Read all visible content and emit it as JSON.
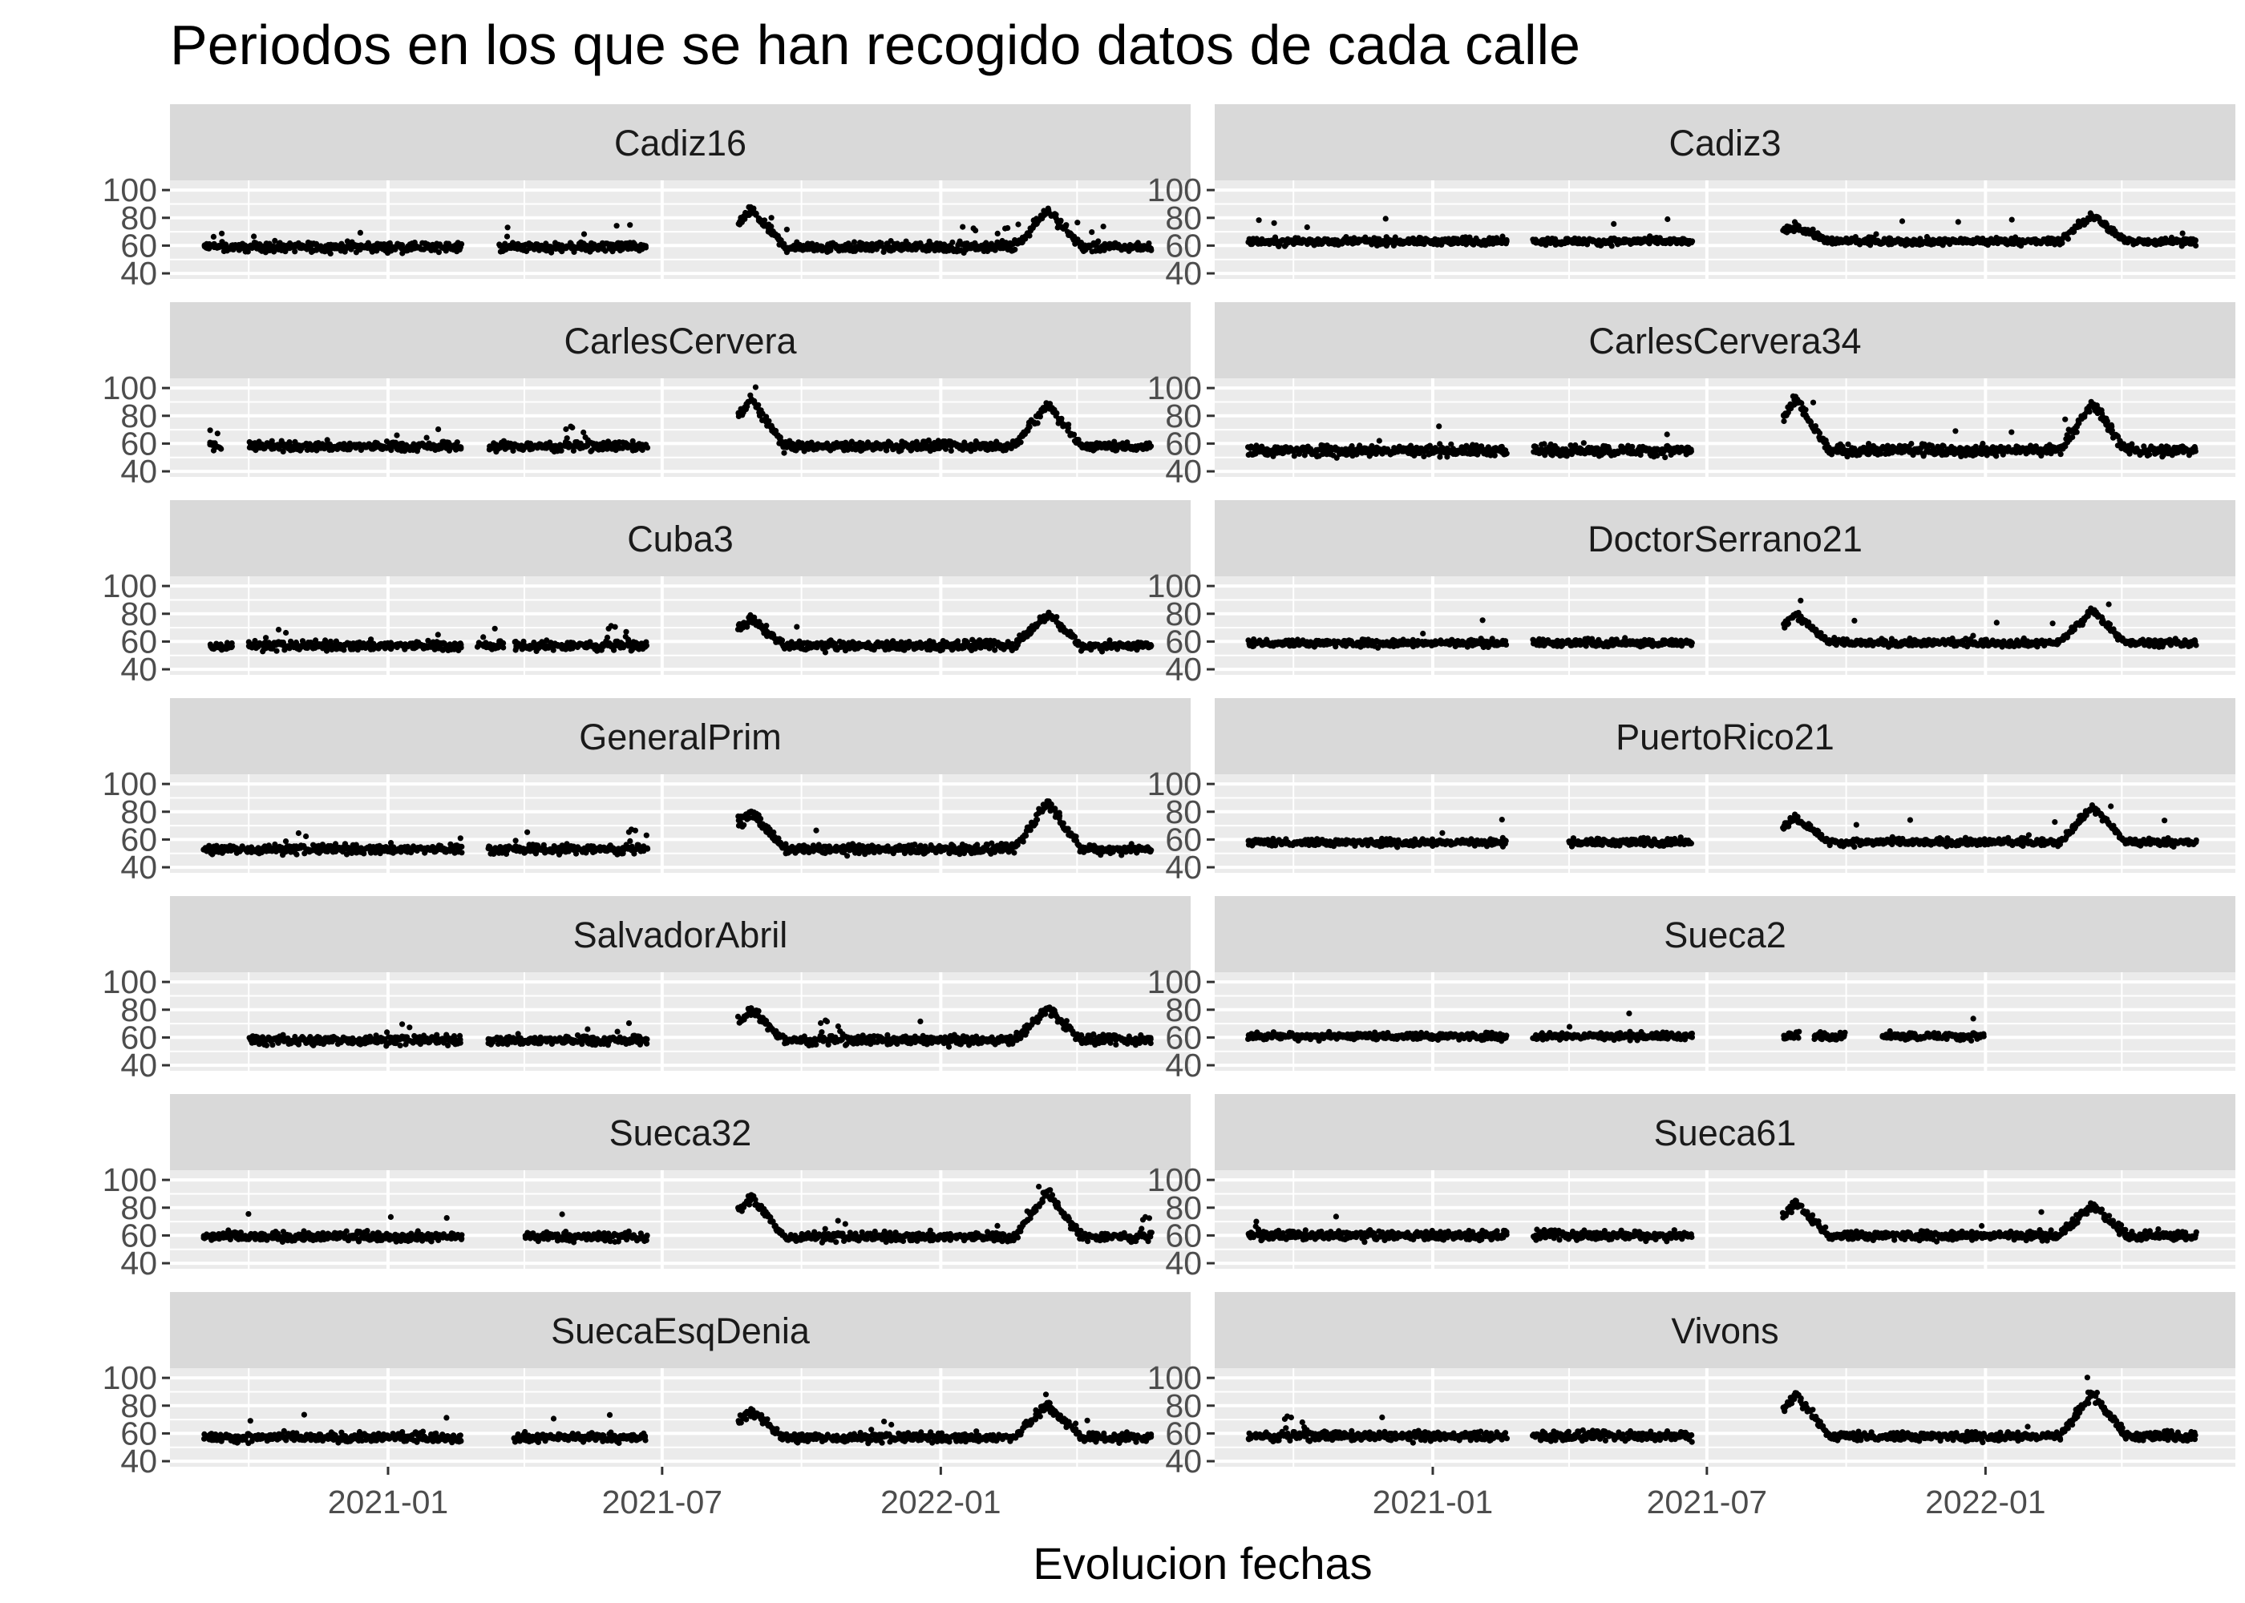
{
  "chart_data": {
    "type": "scatter",
    "title": "Periodos en los que se han recogido datos de cada calle",
    "xlabel": "Evolucion fechas",
    "ylabel": "",
    "y_ticks": [
      40,
      60,
      80,
      100
    ],
    "x_ticks": [
      "2021-01",
      "2021-07",
      "2022-01"
    ],
    "x_range": [
      "2020-08-10",
      "2022-06-15"
    ],
    "y_range": [
      36,
      107
    ],
    "point_color": "#000000",
    "panel_background": "#ebebeb",
    "strip_background": "#d9d9d9",
    "grid": true,
    "facets": [
      {
        "name": "Cadiz16",
        "base": 59,
        "spread": 5,
        "segments": [
          [
            "2020-09-01",
            "2021-02-18"
          ],
          [
            "2021-03-15",
            "2021-06-20"
          ],
          [
            "2021-08-20",
            "2022-05-20"
          ]
        ],
        "peaks": [
          [
            "2021-08-28",
            90
          ],
          [
            "2022-03-12",
            90
          ]
        ]
      },
      {
        "name": "Cadiz3",
        "base": 63,
        "spread": 4,
        "segments": [
          [
            "2020-09-01",
            "2021-02-18"
          ],
          [
            "2021-03-08",
            "2021-06-20"
          ],
          [
            "2021-08-20",
            "2022-05-20"
          ]
        ],
        "peaks": [
          [
            "2021-08-28",
            78
          ],
          [
            "2022-03-12",
            86
          ]
        ]
      },
      {
        "name": "CarlesCervera",
        "base": 58,
        "spread": 5,
        "segments": [
          [
            "2020-09-05",
            "2020-09-12"
          ],
          [
            "2020-10-01",
            "2021-02-18"
          ],
          [
            "2021-03-08",
            "2021-06-20"
          ],
          [
            "2021-08-20",
            "2022-05-20"
          ]
        ],
        "peaks": [
          [
            "2021-08-28",
            96
          ],
          [
            "2022-03-12",
            93
          ]
        ]
      },
      {
        "name": "CarlesCervera34",
        "base": 55,
        "spread": 6,
        "segments": [
          [
            "2020-09-01",
            "2021-02-18"
          ],
          [
            "2021-03-08",
            "2021-06-20"
          ],
          [
            "2021-08-20",
            "2022-05-20"
          ]
        ],
        "peaks": [
          [
            "2021-08-28",
            95
          ],
          [
            "2022-03-12",
            93
          ]
        ]
      },
      {
        "name": "Cuba3",
        "base": 57,
        "spread": 5,
        "segments": [
          [
            "2020-09-05",
            "2020-09-20"
          ],
          [
            "2020-10-01",
            "2021-02-18"
          ],
          [
            "2021-03-01",
            "2021-03-18"
          ],
          [
            "2021-03-25",
            "2021-06-20"
          ],
          [
            "2021-08-20",
            "2022-05-20"
          ]
        ],
        "peaks": [
          [
            "2021-08-28",
            80
          ],
          [
            "2022-03-12",
            84
          ]
        ]
      },
      {
        "name": "DoctorSerrano21",
        "base": 59,
        "spread": 4,
        "segments": [
          [
            "2020-09-01",
            "2021-02-18"
          ],
          [
            "2021-03-08",
            "2021-06-20"
          ],
          [
            "2021-08-20",
            "2022-05-20"
          ]
        ],
        "peaks": [
          [
            "2021-08-28",
            84
          ],
          [
            "2022-03-12",
            86
          ]
        ]
      },
      {
        "name": "GeneralPrim",
        "base": 53,
        "spread": 5,
        "segments": [
          [
            "2020-09-01",
            "2021-02-18"
          ],
          [
            "2021-03-08",
            "2021-06-20"
          ],
          [
            "2021-08-20",
            "2022-05-20"
          ]
        ],
        "peaks": [
          [
            "2021-08-28",
            84
          ],
          [
            "2022-03-12",
            91
          ]
        ]
      },
      {
        "name": "PuertoRico21",
        "base": 58,
        "spread": 4,
        "segments": [
          [
            "2020-09-01",
            "2021-02-18"
          ],
          [
            "2021-04-01",
            "2021-06-20"
          ],
          [
            "2021-08-20",
            "2022-05-20"
          ]
        ],
        "peaks": [
          [
            "2021-08-28",
            80
          ],
          [
            "2022-03-12",
            88
          ]
        ]
      },
      {
        "name": "SalvadorAbril",
        "base": 58,
        "spread": 5,
        "segments": [
          [
            "2020-10-01",
            "2021-02-18"
          ],
          [
            "2021-03-08",
            "2021-06-20"
          ],
          [
            "2021-08-20",
            "2022-05-20"
          ]
        ],
        "peaks": [
          [
            "2021-08-28",
            84
          ],
          [
            "2022-03-12",
            85
          ]
        ]
      },
      {
        "name": "Sueca2",
        "base": 61,
        "spread": 4,
        "segments": [
          [
            "2020-09-01",
            "2021-02-18"
          ],
          [
            "2021-03-08",
            "2021-06-20"
          ],
          [
            "2021-08-20",
            "2021-08-30"
          ],
          [
            "2021-09-10",
            "2021-09-30"
          ],
          [
            "2021-10-25",
            "2021-12-30"
          ]
        ],
        "peaks": []
      },
      {
        "name": "Sueca32",
        "base": 59,
        "spread": 5,
        "segments": [
          [
            "2020-09-01",
            "2021-02-18"
          ],
          [
            "2021-04-01",
            "2021-06-20"
          ],
          [
            "2021-08-20",
            "2022-05-20"
          ]
        ],
        "peaks": [
          [
            "2021-08-28",
            92
          ],
          [
            "2022-03-12",
            95
          ]
        ]
      },
      {
        "name": "Sueca61",
        "base": 60,
        "spread": 5,
        "segments": [
          [
            "2020-09-01",
            "2021-02-18"
          ],
          [
            "2021-03-08",
            "2021-06-20"
          ],
          [
            "2021-08-20",
            "2022-05-20"
          ]
        ],
        "peaks": [
          [
            "2021-08-28",
            87
          ],
          [
            "2022-03-12",
            86
          ]
        ]
      },
      {
        "name": "SuecaEsqDenia",
        "base": 57,
        "spread": 5,
        "segments": [
          [
            "2020-09-01",
            "2021-02-18"
          ],
          [
            "2021-03-25",
            "2021-06-20"
          ],
          [
            "2021-08-20",
            "2022-05-20"
          ]
        ],
        "peaks": [
          [
            "2021-08-28",
            80
          ],
          [
            "2022-03-12",
            85
          ]
        ]
      },
      {
        "name": "Vivons",
        "base": 58,
        "spread": 5,
        "segments": [
          [
            "2020-09-01",
            "2021-02-18"
          ],
          [
            "2021-03-08",
            "2021-06-20"
          ],
          [
            "2021-08-20",
            "2022-05-20"
          ]
        ],
        "peaks": [
          [
            "2021-08-28",
            93
          ],
          [
            "2022-03-12",
            93
          ]
        ]
      }
    ]
  }
}
